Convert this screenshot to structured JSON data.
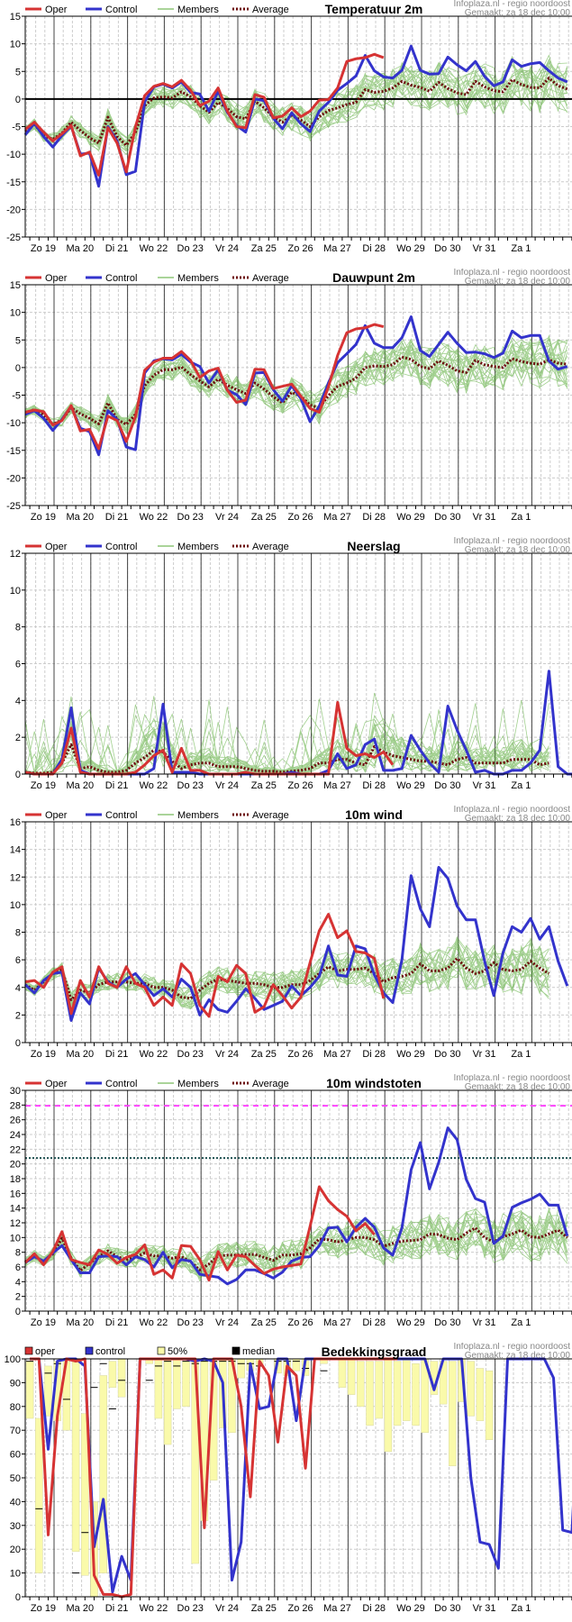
{
  "credit": {
    "line1": "Infoplaza.nl - regio noordoost",
    "line2": "Gemaakt: za 18 dec 10:00"
  },
  "day_labels": [
    "Zo 19",
    "Ma 20",
    "Di 21",
    "Wo 22",
    "Do 23",
    "Vr 24",
    "Za 25",
    "Zo 26",
    "Ma 27",
    "Di 28",
    "Wo 29",
    "Do 30",
    "Vr 31",
    "Za 1"
  ],
  "colors": {
    "oper": "#d63333",
    "control": "#3333cc",
    "members": "#55aa33",
    "average": "#6b0a0a",
    "band50": "#fafaaa",
    "median": "#000000",
    "threshold_magenta": "#ff44ff",
    "threshold_teal": "#1f5050"
  },
  "chart_data": [
    {
      "id": "temp",
      "type": "line",
      "title": "Temperatuur 2m",
      "legend": [
        "Oper",
        "Control",
        "Members",
        "Average"
      ],
      "ylim": [
        -25,
        15
      ],
      "yticks": [
        15,
        10,
        5,
        0,
        -5,
        -10,
        -15,
        -20,
        -25
      ],
      "zero_line": true,
      "oper": [
        -5.5,
        -4.2,
        -6,
        -7.6,
        -6.3,
        -4.8,
        -10.3,
        -9.6,
        -13.8,
        -5.2,
        -8,
        -13.2,
        -5,
        0.6,
        2.3,
        2.8,
        2.2,
        3.4,
        1.6,
        -1.2,
        -0.4,
        2,
        -2.2,
        -5,
        -5.2,
        0.8,
        0.3,
        -3.4,
        -3.1,
        -1.6,
        -3.2,
        -2.2,
        -0.2,
        -0.1,
        2,
        6.8,
        7.3,
        7.5,
        8.1,
        7.5
      ],
      "control": [
        -6.5,
        -4.4,
        -6.8,
        -8.7,
        -6.6,
        -4.9,
        -10,
        -9.8,
        -15.8,
        -5,
        -7.6,
        -13.7,
        -13.1,
        -0.5,
        2.2,
        2.7,
        2,
        3.1,
        1.2,
        0.9,
        -2.2,
        1.4,
        -2.4,
        -4.8,
        -6,
        0,
        -0.3,
        -3.5,
        -5.4,
        -2.5,
        -4.5,
        -5.9,
        -2.2,
        -0.6,
        1.6,
        2.8,
        4.2,
        7.9,
        5.1,
        4,
        3.8,
        5.2,
        9.6,
        5.2,
        4.5,
        4.6,
        7.6,
        6.2,
        5.1,
        6.8,
        4.1,
        2.4,
        3.1,
        7.1,
        5.9,
        6.4,
        6.6,
        5.1,
        3.8,
        3.1
      ],
      "average": [
        -5.8,
        -4.6,
        -6.6,
        -7.3,
        -6.2,
        -4.2,
        -5.7,
        -7,
        -8,
        -3.3,
        -6.8,
        -8.4,
        -6,
        -1.2,
        0.2,
        0.4,
        0.2,
        1.3,
        0.4,
        -1.2,
        -2.4,
        -0.6,
        -1.7,
        -3.2,
        -3.6,
        -0.4,
        -1.6,
        -3.3,
        -4.2,
        -3,
        -3.8,
        -5,
        -3.2,
        -2.1,
        -1.6,
        -1,
        -0.6,
        1.7,
        1.2,
        1.4,
        2,
        3.2,
        2.5,
        2.1,
        1.4,
        3,
        1.9,
        1.1,
        0.8,
        3.2,
        2.2,
        1.5,
        1.3,
        3.5,
        2.6,
        2.1,
        2,
        3.8,
        2.4,
        1.8
      ]
    },
    {
      "id": "dew",
      "type": "line",
      "title": "Dauwpunt 2m",
      "legend": [
        "Oper",
        "Control",
        "Members",
        "Average"
      ],
      "ylim": [
        -25,
        15
      ],
      "yticks": [
        15,
        10,
        5,
        0,
        -5,
        -10,
        -15,
        -20,
        -25
      ],
      "zero_line": false,
      "oper": [
        -8.1,
        -7.7,
        -8,
        -10.4,
        -9.6,
        -6.9,
        -11.5,
        -11.2,
        -14.7,
        -8.8,
        -9.6,
        -13.4,
        -8.9,
        -0.5,
        1,
        1.7,
        1.7,
        2.9,
        1.3,
        -1.8,
        -0.6,
        -0.1,
        -4.1,
        -6.3,
        -5.9,
        -0.3,
        -0.4,
        -3.8,
        -3.4,
        -3,
        -5.2,
        -7.4,
        -8.1,
        -3.5,
        2.2,
        6.3,
        7,
        7.2,
        7.8,
        7.4
      ],
      "control": [
        -8.5,
        -7.8,
        -9.2,
        -11.4,
        -9.4,
        -7,
        -11,
        -11.6,
        -15.8,
        -7.8,
        -9.4,
        -14.4,
        -14.9,
        -1,
        1.2,
        1.6,
        1.4,
        2.4,
        1,
        0.2,
        -2.8,
        -0.4,
        -4.1,
        -4.9,
        -6.7,
        -1,
        -0.9,
        -4,
        -6.1,
        -3.3,
        -5.6,
        -9.8,
        -7,
        -2.8,
        0.9,
        2.5,
        4.2,
        7.6,
        4.4,
        3.6,
        3.6,
        5.4,
        9.2,
        3.1,
        2,
        4.2,
        6.4,
        4.4,
        2.7,
        2.8,
        2.5,
        1.8,
        2.6,
        6.6,
        5.4,
        5.8,
        5.8,
        1.2,
        -0.3,
        0.2
      ],
      "average": [
        -8.3,
        -7.6,
        -8.6,
        -10.3,
        -9.5,
        -7.3,
        -8.4,
        -9.2,
        -10.2,
        -6.4,
        -9.4,
        -10.3,
        -8.5,
        -3.3,
        -1.4,
        -0.4,
        -0.4,
        0.1,
        -1.3,
        -2.4,
        -3.5,
        -2.1,
        -3.2,
        -4,
        -4.7,
        -2.8,
        -3.9,
        -5.3,
        -6.4,
        -4.5,
        -5.2,
        -6.8,
        -7.3,
        -5.1,
        -3.4,
        -2.8,
        -1.9,
        0,
        0.3,
        0.2,
        0.5,
        1.9,
        1.5,
        0.2,
        -0.2,
        1.2,
        0.4,
        -0.6,
        -0.9,
        1.3,
        0.5,
        0.2,
        0,
        1.6,
        1.1,
        0.8,
        0.6,
        1.4,
        0.8,
        0.6
      ]
    },
    {
      "id": "precip",
      "type": "line",
      "title": "Neerslag",
      "legend": [
        "Oper",
        "Control",
        "Members",
        "Average"
      ],
      "ylim": [
        0,
        12
      ],
      "yticks": [
        12,
        10,
        8,
        6,
        4,
        2,
        0
      ],
      "zero_line": false,
      "oper": [
        0.1,
        0,
        0,
        0,
        0.6,
        2.5,
        0.1,
        0,
        0,
        0,
        0,
        0,
        0.1,
        0.5,
        1,
        1.3,
        0.1,
        1.4,
        0.2,
        0.2,
        0,
        0,
        0,
        0,
        0.1,
        0,
        0,
        0,
        0,
        0,
        0,
        0,
        0,
        0,
        3.9,
        1.4,
        1,
        1.1,
        0.9,
        1.2,
        0.5
      ],
      "control": [
        0.1,
        0,
        0,
        0,
        0.8,
        3.6,
        0.2,
        0,
        0,
        0,
        0,
        0,
        0,
        0,
        0.3,
        3.8,
        0.1,
        0.1,
        0.1,
        0,
        0,
        0,
        0,
        0,
        0,
        0,
        0,
        0,
        0,
        0.1,
        0,
        0,
        0,
        0.2,
        1.1,
        0.3,
        0.5,
        1.6,
        1.9,
        0.2,
        0.2,
        0.3,
        2.1,
        1.3,
        0.6,
        0.1,
        3.7,
        2.4,
        1.3,
        0.1,
        0.2,
        0,
        0,
        0.2,
        0.2,
        0.6,
        1.3,
        5.6,
        0.4,
        0,
        0
      ],
      "average": [
        0.1,
        0.05,
        0.05,
        0.1,
        0.6,
        1.6,
        0.3,
        0.4,
        0.2,
        0.1,
        0.1,
        0.2,
        0.6,
        0.9,
        1.3,
        1.2,
        0.7,
        0.3,
        0.5,
        0.6,
        0.6,
        0.4,
        0.4,
        0.4,
        0.3,
        0.2,
        0.15,
        0.15,
        0.1,
        0.15,
        0.2,
        0.3,
        0.6,
        0.6,
        0.8,
        0.8,
        0.6,
        0.5,
        1.5,
        1.2,
        1,
        0.9,
        0.8,
        0.7,
        0.7,
        0.6,
        0.5,
        0.8,
        0.9,
        0.6,
        0.6,
        0.6,
        0.6,
        0.8,
        0.8,
        0.8,
        0.5,
        0.6
      ]
    },
    {
      "id": "wind",
      "type": "line",
      "title": "10m wind",
      "legend": [
        "Oper",
        "Control",
        "Members",
        "Average"
      ],
      "ylim": [
        0,
        16
      ],
      "yticks": [
        16,
        14,
        12,
        10,
        8,
        6,
        4,
        2,
        0
      ],
      "zero_line": false,
      "oper": [
        4.4,
        4.5,
        4,
        5.1,
        5.5,
        2.1,
        4.5,
        3.3,
        5.5,
        4.3,
        4,
        5.5,
        4.3,
        4,
        2.7,
        3.3,
        2.7,
        5.7,
        5,
        2.7,
        1.9,
        4.8,
        4.4,
        5.6,
        5,
        2.2,
        2.6,
        4.2,
        3.4,
        2.5,
        3.3,
        5.8,
        8.1,
        9.3,
        7.6,
        8.1,
        6.6,
        6.5,
        6.1,
        3.2
      ],
      "control": [
        4.2,
        3.6,
        4.5,
        5,
        5.1,
        1.6,
        3.6,
        2.8,
        5.4,
        4.4,
        4,
        4.6,
        5,
        4.2,
        3.4,
        3.9,
        3.3,
        4.6,
        4,
        2,
        3.1,
        2.4,
        2.2,
        3,
        3.9,
        3.2,
        2.4,
        2.7,
        3,
        4.1,
        3.4,
        4,
        4.8,
        7,
        4.9,
        4.8,
        7,
        6.8,
        4.9,
        3.6,
        2.9,
        6,
        12.1,
        9.7,
        8.4,
        12.7,
        11.9,
        9.9,
        8.9,
        8.9,
        5.9,
        3.4,
        6.5,
        8.4,
        8,
        9,
        7.5,
        8.4,
        5.9,
        4.1
      ],
      "average": [
        4.2,
        3.8,
        4.4,
        5,
        5.3,
        3.1,
        3.8,
        3.6,
        4.2,
        4.4,
        4.4,
        4.4,
        4.3,
        4.3,
        4,
        4,
        3.8,
        3.3,
        3.2,
        3.8,
        4.3,
        4.6,
        4.5,
        4.4,
        4.3,
        4.3,
        4.2,
        4,
        4,
        4.2,
        4.2,
        4.5,
        5,
        5.5,
        5.2,
        5.3,
        5.3,
        5.4,
        5,
        4.4,
        4.7,
        4.8,
        5,
        5.7,
        5.2,
        5.2,
        5.4,
        6.1,
        5.4,
        5,
        5.2,
        5.8,
        5.3,
        5.2,
        5.3,
        5.9,
        5.4,
        5
      ]
    },
    {
      "id": "gust",
      "type": "line",
      "title": "10m windstoten",
      "legend": [
        "Oper",
        "Control",
        "Members",
        "Average"
      ],
      "ylim": [
        0,
        30
      ],
      "yticks": [
        30,
        28,
        26,
        24,
        22,
        20,
        18,
        16,
        14,
        12,
        10,
        8,
        6,
        4,
        2,
        0
      ],
      "thresholds": [
        {
          "value": 27.9,
          "style": "dashed",
          "color_key": "threshold_magenta"
        },
        {
          "value": 20.8,
          "style": "dotted",
          "color_key": "threshold_teal"
        }
      ],
      "zero_line": false,
      "oper": [
        6.6,
        7.8,
        6.3,
        8.1,
        10.8,
        7,
        6.6,
        6.3,
        8.3,
        7.7,
        6.5,
        7.3,
        7.7,
        9,
        5,
        5.6,
        4.5,
        8.9,
        8.8,
        7,
        4.2,
        8.1,
        5.6,
        7.6,
        7.4,
        6.2,
        5.1,
        5.7,
        6,
        6.2,
        6.4,
        11.5,
        16.9,
        15,
        13.8,
        12.9,
        10.9,
        11.9,
        10.4
      ],
      "control": [
        6.6,
        7.4,
        6.8,
        7.9,
        8.9,
        7,
        5.2,
        5.2,
        7.4,
        7.5,
        7.4,
        6.3,
        7.4,
        7,
        6,
        8,
        5.9,
        7,
        6.8,
        5,
        4.8,
        4.6,
        3.7,
        4.3,
        5.6,
        5.6,
        5.1,
        4.5,
        5.3,
        6.8,
        7.3,
        7.4,
        8.9,
        11.3,
        11.4,
        9.4,
        11.4,
        12.6,
        11.4,
        8.6,
        7.6,
        11.3,
        19.2,
        22.9,
        16.6,
        20.2,
        24.9,
        23.3,
        17.9,
        15.3,
        14.8,
        9.2,
        10.2,
        14.1,
        14.7,
        15.2,
        15.9,
        14.4,
        14.4,
        10.2
      ],
      "average": [
        6.7,
        7.5,
        6.7,
        7.8,
        9.9,
        7.2,
        5.5,
        6.5,
        7.4,
        8.2,
        7.4,
        7,
        7.3,
        7.9,
        7.5,
        7.5,
        7.2,
        7.4,
        6.7,
        5.6,
        6.4,
        7.5,
        7.6,
        7.6,
        7.7,
        7.7,
        7.3,
        6.9,
        7.6,
        7.6,
        7.8,
        8.6,
        9.8,
        9.7,
        9.4,
        9.7,
        10,
        10,
        9.7,
        8.8,
        9.2,
        9.5,
        9.6,
        9.7,
        10.5,
        10.4,
        9.9,
        9.7,
        10.6,
        11.3,
        10,
        9.4,
        10.1,
        10.5,
        11,
        10.1,
        10,
        10.5,
        11,
        10
      ]
    },
    {
      "id": "cloud",
      "type": "line",
      "title": "Bedekkingsgraad",
      "legend": [
        "oper",
        "control",
        "50%",
        "median"
      ],
      "ylim": [
        0,
        100
      ],
      "yticks": [
        100,
        90,
        80,
        70,
        60,
        50,
        40,
        30,
        20,
        10,
        0
      ],
      "zero_line": false,
      "oper": [
        100,
        100,
        26,
        76,
        100,
        99,
        100,
        9,
        1,
        1,
        0,
        1,
        100,
        100,
        100,
        100,
        100,
        100,
        100,
        29,
        100,
        100,
        100,
        80,
        42,
        99,
        93,
        65,
        97,
        93,
        54,
        100,
        100,
        100,
        100,
        100,
        100,
        100,
        100,
        100,
        100
      ],
      "control": [
        100,
        100,
        62,
        99,
        100,
        100,
        97,
        21,
        41,
        2,
        17,
        7,
        100,
        100,
        100,
        100,
        100,
        100,
        99,
        100,
        99,
        90,
        7,
        23,
        98,
        79,
        80,
        100,
        100,
        74,
        100,
        100,
        100,
        100,
        100,
        100,
        100,
        100,
        100,
        100,
        100,
        100,
        100,
        100,
        87,
        100,
        100,
        100,
        50,
        23,
        22,
        12,
        100,
        100,
        100,
        100,
        100,
        92,
        28,
        27,
        100
      ],
      "band50": [
        [
          75,
          99
        ],
        [
          10,
          75
        ],
        [
          76,
          97
        ],
        [
          74,
          99
        ],
        [
          70,
          99
        ],
        [
          19,
          99
        ],
        [
          9,
          77
        ],
        [
          0,
          40
        ],
        [
          10,
          93
        ],
        [
          88,
          99
        ],
        [
          84,
          100
        ],
        [
          0,
          0
        ],
        [
          0,
          0
        ],
        [
          98,
          100
        ],
        [
          75,
          100
        ],
        [
          64,
          100
        ],
        [
          79,
          100
        ],
        [
          80,
          99
        ],
        [
          14,
          100
        ],
        [
          32,
          100
        ],
        [
          49,
          99
        ],
        [
          71,
          100
        ],
        [
          69,
          100
        ],
        [
          92,
          100
        ],
        [
          95,
          100
        ],
        [
          97,
          100
        ],
        [
          0,
          0
        ],
        [
          94,
          100
        ],
        [
          93,
          100
        ],
        [
          95,
          100
        ],
        [
          93,
          100
        ],
        [
          0,
          0
        ],
        [
          98,
          100
        ],
        [
          0,
          0
        ],
        [
          88,
          100
        ],
        [
          85,
          100
        ],
        [
          80,
          99
        ],
        [
          72,
          99
        ],
        [
          75,
          99
        ],
        [
          61,
          100
        ],
        [
          72,
          99
        ],
        [
          74,
          100
        ],
        [
          72,
          98
        ],
        [
          69,
          100
        ],
        [
          85,
          99
        ],
        [
          81,
          99
        ],
        [
          55,
          99
        ],
        [
          82,
          100
        ],
        [
          76,
          99
        ],
        [
          74,
          96
        ],
        [
          66,
          95
        ]
      ],
      "median": [
        99,
        37,
        94,
        98,
        83,
        10,
        27,
        88,
        98,
        79,
        91,
        91,
        97,
        99,
        97,
        99,
        98,
        99,
        99,
        99,
        99,
        98,
        98,
        97,
        99,
        99,
        99,
        96,
        95
      ]
    }
  ]
}
